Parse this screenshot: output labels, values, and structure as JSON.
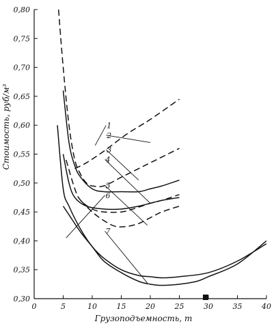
{
  "chart_data": {
    "type": "line",
    "xlabel": "Грузоподъемность, т",
    "ylabel": "Стоимость, руб/м³",
    "xlim": [
      0,
      40
    ],
    "ylim": [
      0.3,
      0.8
    ],
    "x_ticks": [
      "0",
      "5",
      "10",
      "15",
      "20",
      "25",
      "30",
      "35",
      "40"
    ],
    "y_ticks": [
      "0,30",
      "0,35",
      "0,40",
      "0,45",
      "0,50",
      "0,55",
      "0,60",
      "0,65",
      "0,70",
      "0,75",
      "0,80"
    ],
    "grid": false,
    "series": [
      {
        "name": "1",
        "style": "dashed",
        "x": [
          7,
          9,
          12,
          16,
          20,
          25
        ],
        "y": [
          0.525,
          0.535,
          0.555,
          0.585,
          0.61,
          0.645
        ]
      },
      {
        "name": "2",
        "style": "dashed",
        "x": [
          4.2,
          5,
          6,
          7,
          8,
          9,
          10,
          12,
          15,
          18,
          20,
          22,
          25
        ],
        "y": [
          0.8,
          0.7,
          0.6,
          0.54,
          0.515,
          0.5,
          0.495,
          0.495,
          0.51,
          0.525,
          0.535,
          0.545,
          0.56
        ]
      },
      {
        "name": "3",
        "style": "solid",
        "x": [
          5,
          6,
          7,
          8,
          10,
          12,
          15,
          18,
          20,
          22,
          25
        ],
        "y": [
          0.66,
          0.57,
          0.53,
          0.51,
          0.49,
          0.485,
          0.485,
          0.485,
          0.49,
          0.495,
          0.505
        ]
      },
      {
        "name": "4",
        "style": "dashed",
        "x": [
          5.5,
          7,
          8,
          10,
          12,
          15,
          17,
          20,
          22,
          25
        ],
        "y": [
          0.54,
          0.49,
          0.47,
          0.455,
          0.45,
          0.45,
          0.455,
          0.465,
          0.47,
          0.48
        ]
      },
      {
        "name": "5",
        "style": "solid",
        "x": [
          5,
          6,
          7,
          9,
          12,
          15,
          18,
          20,
          22,
          25
        ],
        "y": [
          0.55,
          0.5,
          0.475,
          0.46,
          0.455,
          0.455,
          0.46,
          0.465,
          0.47,
          0.475
        ]
      },
      {
        "name": "6",
        "style": "dashed",
        "x": [
          8,
          10,
          12,
          14,
          16,
          18,
          20,
          22,
          25
        ],
        "y": [
          0.47,
          0.45,
          0.435,
          0.425,
          0.425,
          0.43,
          0.44,
          0.45,
          0.46
        ]
      },
      {
        "name": "7",
        "style": "solid",
        "x": [
          4,
          5,
          6,
          8,
          10,
          12,
          15,
          18,
          20,
          22,
          25,
          30,
          35,
          40
        ],
        "y": [
          0.6,
          0.49,
          0.46,
          0.42,
          0.39,
          0.37,
          0.35,
          0.34,
          0.338,
          0.336,
          0.338,
          0.345,
          0.365,
          0.395
        ]
      },
      {
        "name": "",
        "style": "solid",
        "x": [
          5,
          6,
          8,
          10,
          12,
          15,
          18,
          20,
          22,
          25,
          28,
          30,
          35,
          40
        ],
        "y": [
          0.46,
          0.445,
          0.415,
          0.39,
          0.365,
          0.345,
          0.33,
          0.325,
          0.323,
          0.325,
          0.33,
          0.338,
          0.36,
          0.4
        ]
      }
    ],
    "labels": [
      {
        "text": "1",
        "x": 12.5,
        "y": 0.595,
        "tx": 10.5,
        "ty": 0.565
      },
      {
        "text": "2",
        "x": 12.5,
        "y": 0.578,
        "tx": 20,
        "ty": 0.57
      },
      {
        "text": "3",
        "x": 12.5,
        "y": 0.553,
        "tx": 18,
        "ty": 0.505
      },
      {
        "text": "4",
        "x": 12.3,
        "y": 0.536,
        "tx": 20,
        "ty": 0.465
      },
      {
        "text": "5",
        "x": 12.3,
        "y": 0.491,
        "tx": 19.5,
        "ty": 0.427
      },
      {
        "text": "6",
        "x": 12.3,
        "y": 0.474,
        "tx": 5.5,
        "ty": 0.405
      },
      {
        "text": "7",
        "x": 12.3,
        "y": 0.412,
        "tx": 19.5,
        "ty": 0.327
      }
    ]
  }
}
